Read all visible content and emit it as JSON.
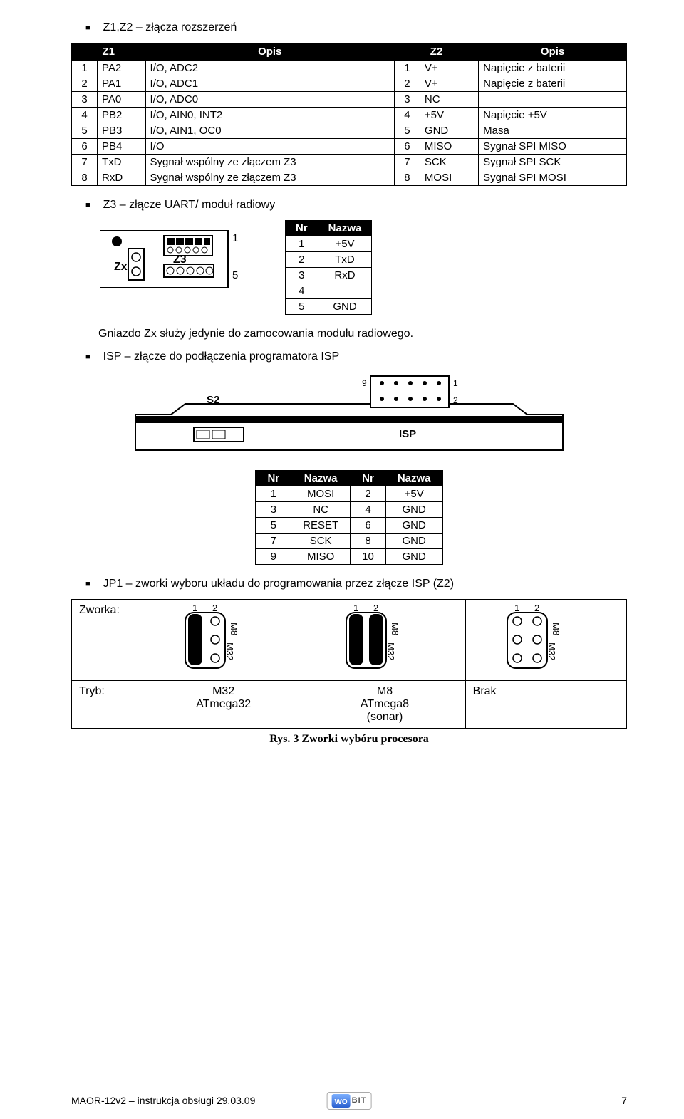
{
  "section1": {
    "title": "Z1,Z2 – złącza rozszerzeń"
  },
  "z1z2": {
    "headers": [
      "Z1",
      "Opis",
      "Z2",
      "Opis"
    ],
    "rows": [
      [
        "1",
        "PA2",
        "I/O, ADC2",
        "1",
        "V+",
        "Napięcie z baterii"
      ],
      [
        "2",
        "PA1",
        "I/O, ADC1",
        "2",
        "V+",
        "Napięcie z baterii"
      ],
      [
        "3",
        "PA0",
        "I/O, ADC0",
        "3",
        "NC",
        ""
      ],
      [
        "4",
        "PB2",
        "I/O, AIN0, INT2",
        "4",
        "+5V",
        "Napięcie +5V"
      ],
      [
        "5",
        "PB3",
        "I/O, AIN1, OC0",
        "5",
        "GND",
        "Masa"
      ],
      [
        "6",
        "PB4",
        "I/O",
        "6",
        "MISO",
        "Sygnał SPI MISO"
      ],
      [
        "7",
        "TxD",
        "Sygnał wspólny ze złączem Z3",
        "7",
        "SCK",
        "Sygnał SPI SCK"
      ],
      [
        "8",
        "RxD",
        "Sygnał wspólny ze złączem Z3",
        "8",
        "MOSI",
        "Sygnał SPI MOSI"
      ]
    ]
  },
  "section2": {
    "title": "Z3 – złącze UART/ moduł radiowy"
  },
  "z3pins": {
    "headers": [
      "Nr",
      "Nazwa"
    ],
    "rows": [
      [
        "1",
        "+5V"
      ],
      [
        "2",
        "TxD"
      ],
      [
        "3",
        "RxD"
      ],
      [
        "4",
        ""
      ],
      [
        "5",
        "GND"
      ]
    ],
    "labels": {
      "zx": "Zx",
      "z3": "Z3",
      "one": "1",
      "five": "5"
    }
  },
  "zx_note": "Gniazdo Zx służy jedynie do zamocowania modułu radiowego.",
  "section3": {
    "title": "ISP – złącze do podłączenia programatora ISP"
  },
  "isp_diag": {
    "s2": "S2",
    "isp": "ISP",
    "p9": "9",
    "p1": "1",
    "p2": "2",
    "dot1": "1",
    "dot2": "2"
  },
  "isp_pins": {
    "headers": [
      "Nr",
      "Nazwa",
      "Nr",
      "Nazwa"
    ],
    "rows": [
      [
        "1",
        "MOSI",
        "2",
        "+5V"
      ],
      [
        "3",
        "NC",
        "4",
        "GND"
      ],
      [
        "5",
        "RESET",
        "6",
        "GND"
      ],
      [
        "7",
        "SCK",
        "8",
        "GND"
      ],
      [
        "9",
        "MISO",
        "10",
        "GND"
      ]
    ]
  },
  "section4": {
    "title": "JP1 – zworki wyboru układu do programowania przez złącze ISP (Z2)"
  },
  "jumper": {
    "row1_label": "Zworka:",
    "row2_label": "Tryb:",
    "cells": [
      {
        "top": "M32",
        "bot": "ATmega32"
      },
      {
        "top": "M8",
        "bot": "ATmega8\n(sonar)"
      },
      {
        "top": "Brak",
        "bot": ""
      }
    ],
    "pins": {
      "one": "1",
      "two": "2",
      "m8": "M8",
      "m32": "M32"
    }
  },
  "caption": "Rys. 3 Zworki wybóru procesora",
  "footer": {
    "left": "MAOR-12v2 – instrukcja obsługi 29.03.09",
    "page": "7",
    "logo_wo": "wo",
    "logo_bit": "BIT"
  },
  "colors": {
    "black": "#000000",
    "white": "#ffffff"
  }
}
